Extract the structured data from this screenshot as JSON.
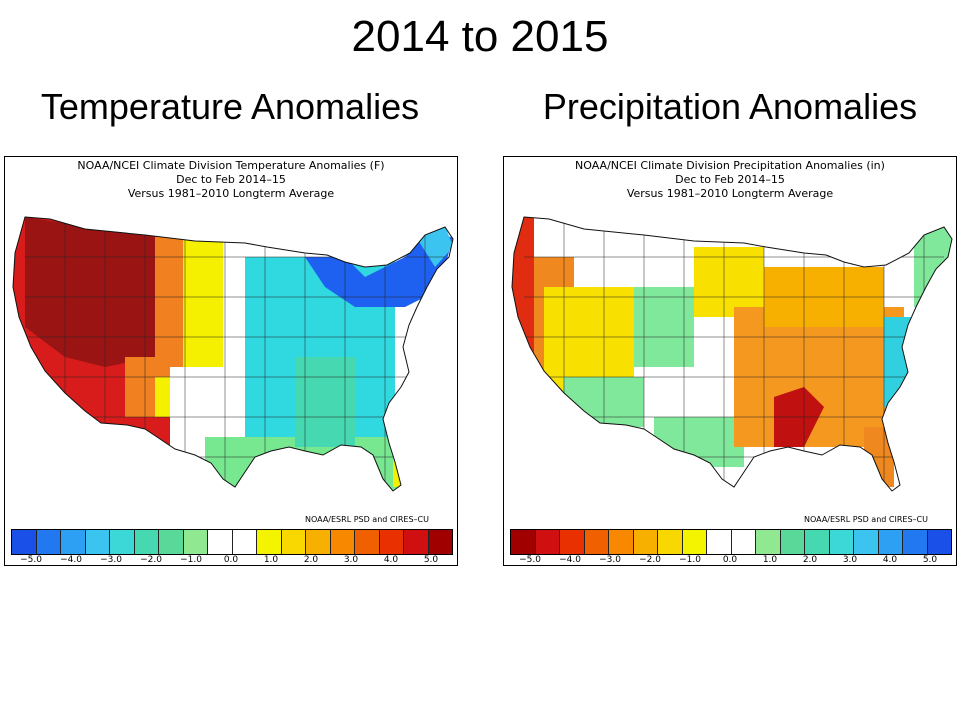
{
  "slide": {
    "title": "2014 to 2015",
    "left_heading": "Temperature Anomalies",
    "right_heading": "Precipitation Anomalies"
  },
  "temperature_map": {
    "header": [
      "NOAA/NCEI Climate Division Temperature Anomalies (F)",
      "Dec to Feb 2014–15",
      "Versus 1981–2010 Longterm Average"
    ],
    "credit": "NOAA/ESRL PSD and CIRES–CU",
    "colorbar_colors": [
      "#1a50e8",
      "#2278f0",
      "#2ea0f4",
      "#3cc4f0",
      "#3cd8d8",
      "#46d8b0",
      "#5ad89a",
      "#90e890",
      "#ffffff",
      "#ffffff",
      "#f4f400",
      "#f8d800",
      "#f8b000",
      "#f88800",
      "#f06000",
      "#e83000",
      "#d01010",
      "#a00000"
    ],
    "tick_labels": [
      "−5.0",
      "−4.0",
      "−3.0",
      "−2.0",
      "−1.0",
      "0.0",
      "1.0",
      "2.0",
      "3.0",
      "4.0",
      "5.0"
    ],
    "region_colors": {
      "west_core": "#9a1414",
      "west_ring": "#d81c1c",
      "plains_orange": "#f08020",
      "plains_yellow": "#f4f000",
      "center_white": "#ffffff",
      "cyan_east": "#30d8e0",
      "green_south": "#78e890",
      "blue_northeast": "#1e60f0"
    }
  },
  "precipitation_map": {
    "header": [
      "NOAA/NCEI Climate Division Precipitation Anomalies (in)",
      "Dec to Feb 2014–15",
      "Versus 1981–2010 Longterm Average"
    ],
    "credit": "NOAA/ESRL PSD and CIRES–CU",
    "colorbar_colors": [
      "#a00000",
      "#d01010",
      "#e83000",
      "#f06000",
      "#f88800",
      "#f8b000",
      "#f8d800",
      "#f4f400",
      "#ffffff",
      "#ffffff",
      "#90e890",
      "#5ad89a",
      "#46d8b0",
      "#3cd8d8",
      "#3cc4f0",
      "#2ea0f4",
      "#2278f0",
      "#1a50e8"
    ],
    "tick_labels": [
      "−5.0",
      "−4.0",
      "−3.0",
      "−2.0",
      "−1.0",
      "0.0",
      "1.0",
      "2.0",
      "3.0",
      "4.0",
      "5.0"
    ],
    "region_colors": {
      "coast_red": "#e02c10",
      "west_orange": "#f08820",
      "west_yellow": "#f8e000",
      "plains_white": "#ffffff",
      "plains_green": "#80e89a",
      "east_orange": "#f49820",
      "southeast_red": "#c01010",
      "east_coast_cyan": "#30d0e0"
    }
  }
}
